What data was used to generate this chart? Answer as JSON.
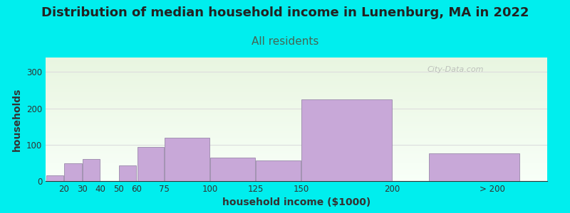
{
  "title": "Distribution of median household income in Lunenburg, MA in 2022",
  "subtitle": "All residents",
  "xlabel": "household income ($1000)",
  "ylabel": "households",
  "bar_values": [
    15,
    48,
    60,
    0,
    43,
    93,
    120,
    65,
    57,
    225,
    77
  ],
  "bar_lefts": [
    10,
    20,
    30,
    40,
    50,
    60,
    75,
    100,
    125,
    150,
    220
  ],
  "bar_widths": [
    10,
    10,
    10,
    10,
    10,
    15,
    25,
    25,
    25,
    50,
    50
  ],
  "bar_color": "#c8a8d8",
  "bar_edge_color": "#9988aa",
  "yticks": [
    0,
    100,
    200,
    300
  ],
  "ylim": [
    0,
    340
  ],
  "xlim": [
    10,
    285
  ],
  "xtick_positions": [
    20,
    30,
    40,
    50,
    60,
    75,
    100,
    125,
    150,
    200,
    255
  ],
  "xtick_labels": [
    "20",
    "30",
    "40",
    "50",
    "60",
    "75",
    "100",
    "125",
    "150",
    "200",
    "> 200"
  ],
  "bg_color": "#00eeee",
  "plot_bg_top_color": "#e8f5e0",
  "plot_bg_bottom_color": "#f8fff8",
  "title_fontsize": 13,
  "subtitle_fontsize": 11,
  "subtitle_color": "#446655",
  "axis_label_fontsize": 10,
  "watermark": "City-Data.com",
  "grid_color": "#dddddd"
}
